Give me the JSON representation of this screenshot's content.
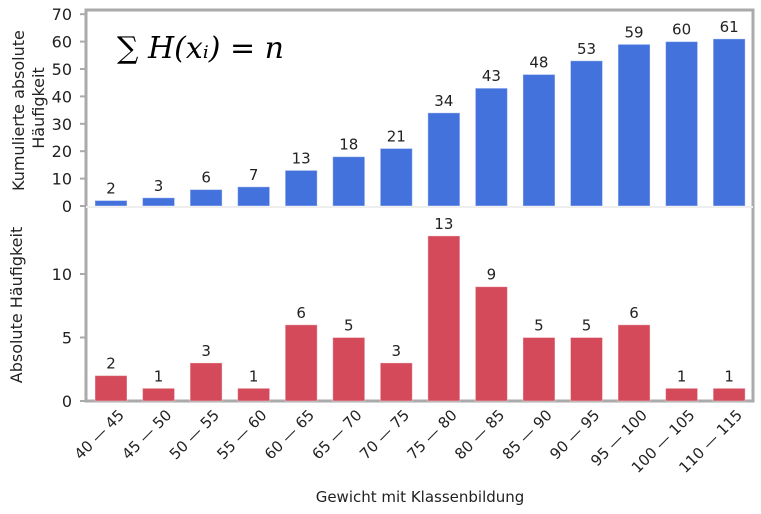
{
  "chart_data": [
    {
      "type": "bar",
      "panel": "top",
      "title": "",
      "annotation": "∑ H(xᵢ) = n",
      "ylabel": "Kumulierte absolute Häufigkeit",
      "ylabel_lines": [
        "Kumulierte absolute",
        "Häufigkeit"
      ],
      "ylim": [
        0,
        70
      ],
      "yticks": [
        0,
        10,
        20,
        30,
        40,
        50,
        60,
        70
      ],
      "categories": [
        "40 — 45",
        "45 — 50",
        "50 — 55",
        "55 — 60",
        "60 — 65",
        "65 — 70",
        "70 — 75",
        "75 — 80",
        "80 — 85",
        "85 — 90",
        "90 — 95",
        "95 — 100",
        "100 — 105",
        "110 — 115"
      ],
      "values": [
        2,
        3,
        6,
        7,
        13,
        18,
        21,
        34,
        43,
        48,
        53,
        59,
        60,
        61
      ],
      "color": "#4472dc"
    },
    {
      "type": "bar",
      "panel": "bottom",
      "title": "",
      "xlabel": "Gewicht mit Klassenbildung",
      "ylabel": "Absolute Häufigkeit",
      "ylim": [
        0,
        13.5
      ],
      "yticks": [
        0,
        5,
        10
      ],
      "categories": [
        "40 — 45",
        "45 — 50",
        "50 — 55",
        "55 — 60",
        "60 — 65",
        "65 — 70",
        "70 — 75",
        "75 — 80",
        "80 — 85",
        "85 — 90",
        "90 — 95",
        "95 — 100",
        "100 — 105",
        "110 — 115"
      ],
      "values": [
        2,
        1,
        3,
        1,
        6,
        5,
        3,
        13,
        9,
        5,
        5,
        6,
        1,
        1
      ],
      "color": "#d44a5a"
    }
  ]
}
